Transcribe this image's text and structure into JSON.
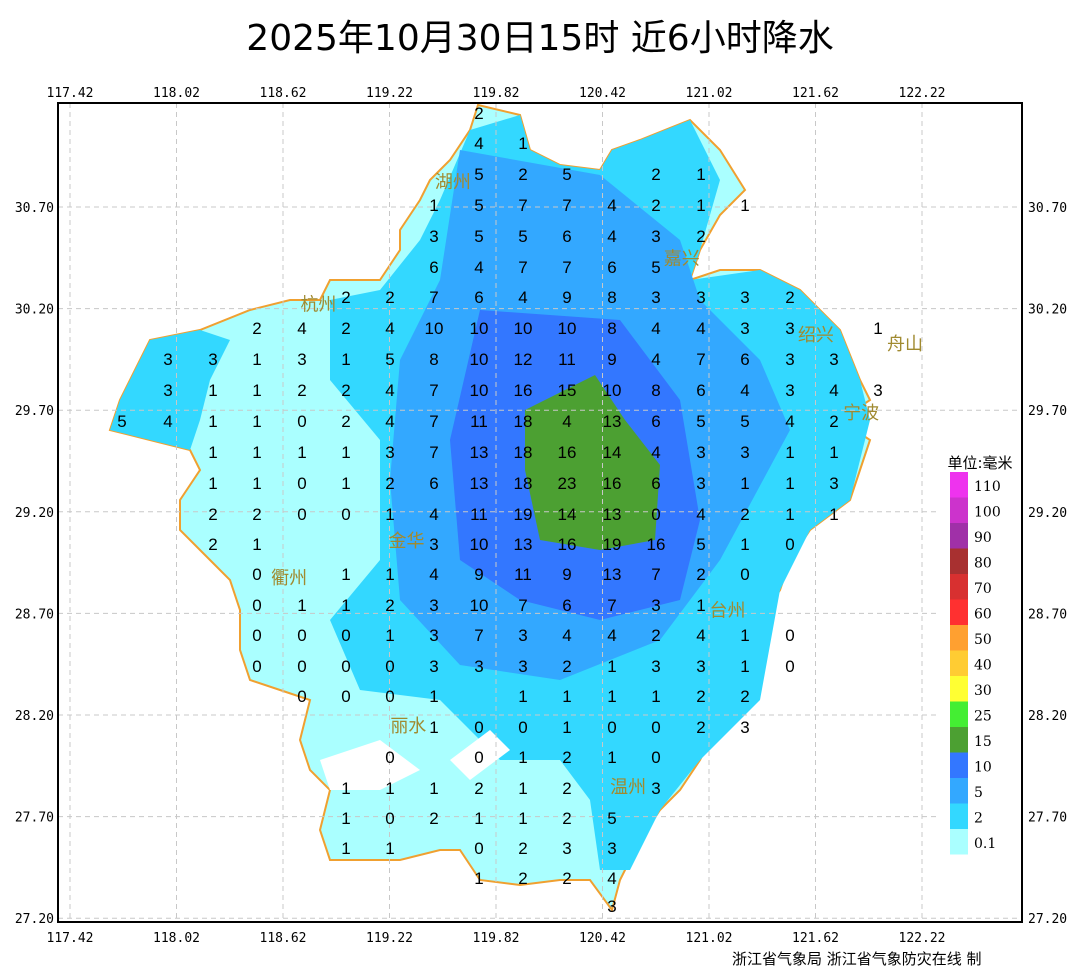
{
  "title": "2025年10月30日15时  近6小时降水",
  "credit": "浙江省气象局 浙江省气象防灾在线 制",
  "map": {
    "lon_ticks": [
      "117.42",
      "118.02",
      "118.62",
      "119.22",
      "119.82",
      "120.42",
      "121.02",
      "121.62",
      "122.22"
    ],
    "lat_ticks": [
      "30.70",
      "30.20",
      "29.70",
      "29.20",
      "28.70",
      "28.20",
      "27.70",
      "27.20"
    ],
    "grid": true,
    "colors": {
      "background": "#ffffff",
      "province_border": "#f0a030",
      "county_border": "#909090",
      "grid": "#c8c8c8"
    },
    "cities": [
      {
        "name": "湖州",
        "lon": 119.87,
        "lat": 30.7
      },
      {
        "name": "嘉兴",
        "lon": 120.72,
        "lat": 30.58
      },
      {
        "name": "杭州",
        "lon": 119.4,
        "lat": 29.85
      },
      {
        "name": "绍兴",
        "lon": 120.58,
        "lat": 29.7
      },
      {
        "name": "宁波",
        "lon": 121.46,
        "lat": 29.7
      },
      {
        "name": "舟山",
        "lon": 122.13,
        "lat": 30.03
      },
      {
        "name": "金华",
        "lon": 119.93,
        "lat": 29.06
      },
      {
        "name": "衢州",
        "lon": 118.66,
        "lat": 28.88
      },
      {
        "name": "台州",
        "lon": 121.13,
        "lat": 28.72
      },
      {
        "name": "丽水",
        "lon": 119.45,
        "lat": 28.15
      },
      {
        "name": "温州",
        "lon": 120.57,
        "lat": 27.85
      }
    ]
  },
  "legend": {
    "title": "单位:毫米",
    "items": [
      {
        "label": "110",
        "color": "#ee33ee"
      },
      {
        "label": "100",
        "color": "#cc33cc"
      },
      {
        "label": "90",
        "color": "#a030a8"
      },
      {
        "label": "80",
        "color": "#a83030"
      },
      {
        "label": "70",
        "color": "#d83030"
      },
      {
        "label": "60",
        "color": "#ff3030"
      },
      {
        "label": "50",
        "color": "#ffa030"
      },
      {
        "label": "40",
        "color": "#ffcc33"
      },
      {
        "label": "30",
        "color": "#ffff33"
      },
      {
        "label": "25",
        "color": "#44ee33"
      },
      {
        "label": "15",
        "color": "#4ca032"
      },
      {
        "label": "10",
        "color": "#3377ff"
      },
      {
        "label": "5",
        "color": "#33a8ff"
      },
      {
        "label": "2",
        "color": "#33d8ff"
      },
      {
        "label": "0.1",
        "color": "#aaffff"
      }
    ]
  },
  "stations": [
    [
      113,
      [
        [
          479,
          "2"
        ]
      ]
    ],
    [
      143,
      [
        [
          479,
          "4"
        ],
        [
          523,
          "1"
        ]
      ]
    ],
    [
      174,
      [
        [
          479,
          "5"
        ],
        [
          523,
          "2"
        ],
        [
          567,
          "5"
        ],
        [
          656,
          "2"
        ],
        [
          701,
          "1"
        ]
      ]
    ],
    [
      205,
      [
        [
          434,
          "1"
        ],
        [
          479,
          "5"
        ],
        [
          523,
          "7"
        ],
        [
          567,
          "7"
        ],
        [
          612,
          "4"
        ],
        [
          656,
          "2"
        ],
        [
          701,
          "1"
        ],
        [
          745,
          "1"
        ]
      ]
    ],
    [
      236,
      [
        [
          434,
          "3"
        ],
        [
          479,
          "5"
        ],
        [
          523,
          "5"
        ],
        [
          567,
          "6"
        ],
        [
          612,
          "4"
        ],
        [
          656,
          "3"
        ],
        [
          701,
          "2"
        ]
      ]
    ],
    [
      267,
      [
        [
          434,
          "6"
        ],
        [
          479,
          "4"
        ],
        [
          523,
          "7"
        ],
        [
          567,
          "7"
        ],
        [
          612,
          "6"
        ],
        [
          656,
          "5"
        ]
      ]
    ],
    [
      297,
      [
        [
          346,
          "2"
        ],
        [
          390,
          "2"
        ],
        [
          434,
          "7"
        ],
        [
          479,
          "6"
        ],
        [
          523,
          "4"
        ],
        [
          567,
          "9"
        ],
        [
          612,
          "8"
        ],
        [
          656,
          "3"
        ],
        [
          701,
          "3"
        ],
        [
          745,
          "3"
        ],
        [
          790,
          "2"
        ]
      ]
    ],
    [
      328,
      [
        [
          257,
          "2"
        ],
        [
          302,
          "4"
        ],
        [
          346,
          "2"
        ],
        [
          390,
          "4"
        ],
        [
          434,
          "10"
        ],
        [
          479,
          "10"
        ],
        [
          523,
          "10"
        ],
        [
          567,
          "10"
        ],
        [
          612,
          "8"
        ],
        [
          656,
          "4"
        ],
        [
          701,
          "4"
        ],
        [
          745,
          "3"
        ],
        [
          790,
          "3"
        ],
        [
          878,
          "1"
        ]
      ]
    ],
    [
      359,
      [
        [
          168,
          "3"
        ],
        [
          213,
          "3"
        ],
        [
          257,
          "1"
        ],
        [
          302,
          "3"
        ],
        [
          346,
          "1"
        ],
        [
          390,
          "5"
        ],
        [
          434,
          "8"
        ],
        [
          479,
          "10"
        ],
        [
          523,
          "12"
        ],
        [
          567,
          "11"
        ],
        [
          612,
          "9"
        ],
        [
          656,
          "4"
        ],
        [
          701,
          "7"
        ],
        [
          745,
          "6"
        ],
        [
          790,
          "3"
        ],
        [
          834,
          "3"
        ]
      ]
    ],
    [
      390,
      [
        [
          168,
          "3"
        ],
        [
          213,
          "1"
        ],
        [
          257,
          "1"
        ],
        [
          302,
          "2"
        ],
        [
          346,
          "2"
        ],
        [
          390,
          "4"
        ],
        [
          434,
          "7"
        ],
        [
          479,
          "10"
        ],
        [
          523,
          "16"
        ],
        [
          567,
          "15"
        ],
        [
          612,
          "10"
        ],
        [
          656,
          "8"
        ],
        [
          701,
          "6"
        ],
        [
          745,
          "4"
        ],
        [
          790,
          "3"
        ],
        [
          834,
          "4"
        ],
        [
          878,
          "3"
        ]
      ]
    ],
    [
      421,
      [
        [
          122,
          "5"
        ],
        [
          168,
          "4"
        ],
        [
          213,
          "1"
        ],
        [
          257,
          "1"
        ],
        [
          302,
          "0"
        ],
        [
          346,
          "2"
        ],
        [
          390,
          "4"
        ],
        [
          434,
          "7"
        ],
        [
          479,
          "11"
        ],
        [
          523,
          "18"
        ],
        [
          567,
          "4"
        ],
        [
          612,
          "13"
        ],
        [
          656,
          "6"
        ],
        [
          701,
          "5"
        ],
        [
          745,
          "5"
        ],
        [
          790,
          "4"
        ],
        [
          834,
          "2"
        ]
      ]
    ],
    [
      452,
      [
        [
          213,
          "1"
        ],
        [
          257,
          "1"
        ],
        [
          302,
          "1"
        ],
        [
          346,
          "1"
        ],
        [
          390,
          "3"
        ],
        [
          434,
          "7"
        ],
        [
          479,
          "13"
        ],
        [
          523,
          "18"
        ],
        [
          567,
          "16"
        ],
        [
          612,
          "14"
        ],
        [
          656,
          "4"
        ],
        [
          701,
          "3"
        ],
        [
          745,
          "3"
        ],
        [
          790,
          "1"
        ],
        [
          834,
          "1"
        ]
      ]
    ],
    [
      483,
      [
        [
          213,
          "1"
        ],
        [
          257,
          "1"
        ],
        [
          302,
          "0"
        ],
        [
          346,
          "1"
        ],
        [
          390,
          "2"
        ],
        [
          434,
          "6"
        ],
        [
          479,
          "13"
        ],
        [
          523,
          "18"
        ],
        [
          567,
          "23"
        ],
        [
          612,
          "16"
        ],
        [
          656,
          "6"
        ],
        [
          701,
          "3"
        ],
        [
          745,
          "1"
        ],
        [
          790,
          "1"
        ],
        [
          834,
          "3"
        ]
      ]
    ],
    [
      514,
      [
        [
          213,
          "2"
        ],
        [
          257,
          "2"
        ],
        [
          302,
          "0"
        ],
        [
          346,
          "0"
        ],
        [
          390,
          "1"
        ],
        [
          434,
          "4"
        ],
        [
          479,
          "11"
        ],
        [
          523,
          "19"
        ],
        [
          567,
          "14"
        ],
        [
          612,
          "13"
        ],
        [
          656,
          "0"
        ],
        [
          701,
          "4"
        ],
        [
          745,
          "2"
        ],
        [
          790,
          "1"
        ],
        [
          834,
          "1"
        ]
      ]
    ],
    [
      544,
      [
        [
          213,
          "2"
        ],
        [
          257,
          "1"
        ],
        [
          434,
          "3"
        ],
        [
          479,
          "10"
        ],
        [
          523,
          "13"
        ],
        [
          567,
          "16"
        ],
        [
          612,
          "19"
        ],
        [
          656,
          "16"
        ],
        [
          701,
          "5"
        ],
        [
          745,
          "1"
        ],
        [
          790,
          "0"
        ]
      ]
    ],
    [
      574,
      [
        [
          257,
          "0"
        ],
        [
          346,
          "1"
        ],
        [
          390,
          "1"
        ],
        [
          434,
          "4"
        ],
        [
          479,
          "9"
        ],
        [
          523,
          "11"
        ],
        [
          567,
          "9"
        ],
        [
          612,
          "13"
        ],
        [
          656,
          "7"
        ],
        [
          701,
          "2"
        ],
        [
          745,
          "0"
        ]
      ]
    ],
    [
      605,
      [
        [
          257,
          "0"
        ],
        [
          302,
          "1"
        ],
        [
          346,
          "1"
        ],
        [
          390,
          "2"
        ],
        [
          434,
          "3"
        ],
        [
          479,
          "10"
        ],
        [
          523,
          "7"
        ],
        [
          567,
          "6"
        ],
        [
          612,
          "7"
        ],
        [
          656,
          "3"
        ],
        [
          701,
          "1"
        ]
      ]
    ],
    [
      635,
      [
        [
          257,
          "0"
        ],
        [
          302,
          "0"
        ],
        [
          346,
          "0"
        ],
        [
          390,
          "1"
        ],
        [
          434,
          "3"
        ],
        [
          479,
          "7"
        ],
        [
          523,
          "3"
        ],
        [
          567,
          "4"
        ],
        [
          612,
          "4"
        ],
        [
          656,
          "2"
        ],
        [
          701,
          "4"
        ],
        [
          745,
          "1"
        ],
        [
          790,
          "0"
        ]
      ]
    ],
    [
      666,
      [
        [
          257,
          "0"
        ],
        [
          302,
          "0"
        ],
        [
          346,
          "0"
        ],
        [
          390,
          "0"
        ],
        [
          434,
          "3"
        ],
        [
          479,
          "3"
        ],
        [
          523,
          "3"
        ],
        [
          567,
          "2"
        ],
        [
          612,
          "1"
        ],
        [
          656,
          "3"
        ],
        [
          701,
          "3"
        ],
        [
          745,
          "1"
        ],
        [
          790,
          "0"
        ]
      ]
    ],
    [
      696,
      [
        [
          302,
          "0"
        ],
        [
          346,
          "0"
        ],
        [
          390,
          "0"
        ],
        [
          434,
          "1"
        ],
        [
          523,
          "1"
        ],
        [
          567,
          "1"
        ],
        [
          612,
          "1"
        ],
        [
          656,
          "1"
        ],
        [
          701,
          "2"
        ],
        [
          745,
          "2"
        ]
      ]
    ],
    [
      727,
      [
        [
          434,
          "1"
        ],
        [
          479,
          "0"
        ],
        [
          523,
          "0"
        ],
        [
          567,
          "1"
        ],
        [
          612,
          "0"
        ],
        [
          656,
          "0"
        ],
        [
          701,
          "2"
        ],
        [
          745,
          "3"
        ]
      ]
    ],
    [
      757,
      [
        [
          390,
          "0"
        ],
        [
          479,
          "0"
        ],
        [
          523,
          "1"
        ],
        [
          567,
          "2"
        ],
        [
          612,
          "1"
        ],
        [
          656,
          "0"
        ]
      ]
    ],
    [
      788,
      [
        [
          346,
          "1"
        ],
        [
          390,
          "1"
        ],
        [
          434,
          "1"
        ],
        [
          479,
          "2"
        ],
        [
          523,
          "1"
        ],
        [
          567,
          "2"
        ],
        [
          656,
          "3"
        ]
      ]
    ],
    [
      818,
      [
        [
          346,
          "1"
        ],
        [
          390,
          "0"
        ],
        [
          434,
          "2"
        ],
        [
          479,
          "1"
        ],
        [
          523,
          "1"
        ],
        [
          567,
          "2"
        ],
        [
          612,
          "5"
        ]
      ]
    ],
    [
      848,
      [
        [
          346,
          "1"
        ],
        [
          390,
          "1"
        ],
        [
          479,
          "0"
        ],
        [
          523,
          "2"
        ],
        [
          567,
          "3"
        ],
        [
          612,
          "3"
        ]
      ]
    ],
    [
      878,
      [
        [
          479,
          "1"
        ],
        [
          523,
          "2"
        ],
        [
          567,
          "2"
        ],
        [
          612,
          "4"
        ]
      ]
    ],
    [
      906,
      [
        [
          612,
          "3"
        ]
      ]
    ]
  ]
}
